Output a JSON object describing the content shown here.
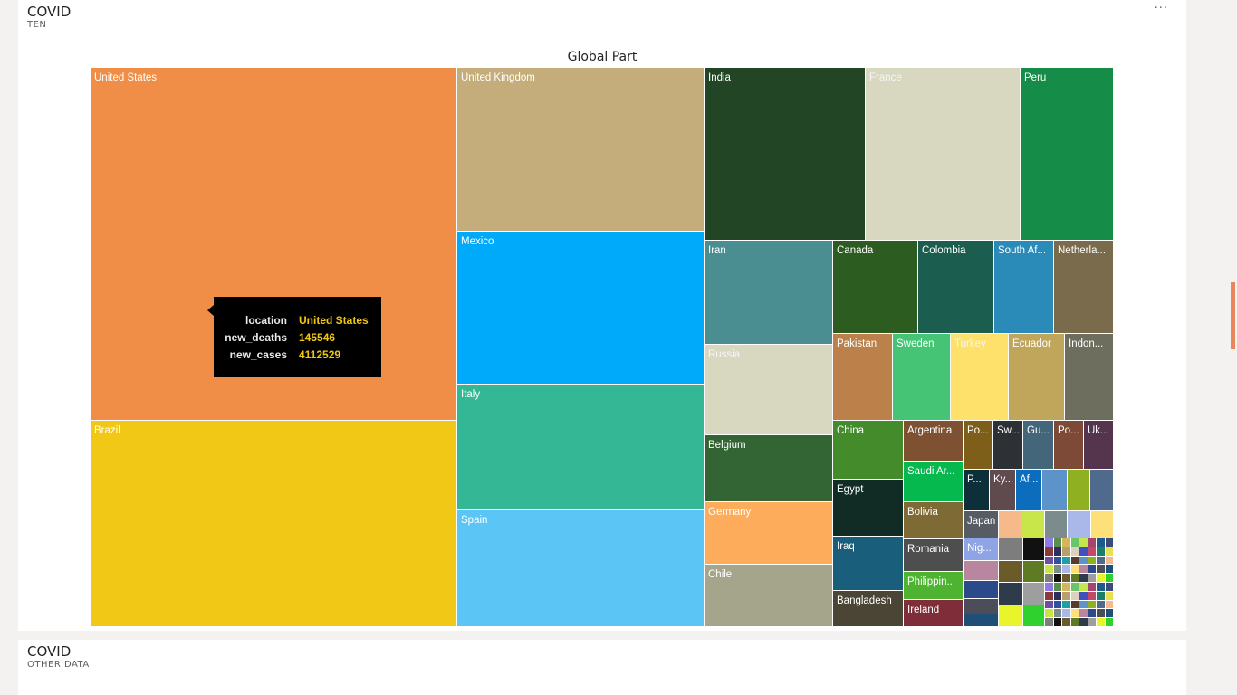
{
  "visual_top": {
    "title": "COVID",
    "subtitle": "TEN",
    "more_label": "···"
  },
  "visual_bottom": {
    "title": "COVID",
    "subtitle": "OTHER DATA"
  },
  "tooltip": {
    "rows": [
      {
        "key": "location",
        "value": "United States"
      },
      {
        "key": "new_deaths",
        "value": "145546"
      },
      {
        "key": "new_cases",
        "value": "4112529"
      }
    ]
  },
  "chart_data": {
    "type": "treemap",
    "title": "Global Part",
    "measure": "new_deaths",
    "group": "location",
    "items": [
      {
        "label": "United States",
        "value": 145546,
        "color": "#F08E48"
      },
      {
        "label": "Brazil",
        "color": "#F0C815"
      },
      {
        "label": "United Kingdom",
        "color": "#C4AD7A"
      },
      {
        "label": "Mexico",
        "color": "#00AAFB"
      },
      {
        "label": "Italy",
        "color": "#33B794"
      },
      {
        "label": "Spain",
        "color": "#5BC6F5"
      },
      {
        "label": "India",
        "color": "#224625"
      },
      {
        "label": "France",
        "color": "#D8D8C1"
      },
      {
        "label": "Peru",
        "color": "#158C47"
      },
      {
        "label": "Iran",
        "color": "#4A8E91"
      },
      {
        "label": "Russia",
        "color": "#D8D8C1"
      },
      {
        "label": "Belgium",
        "color": "#336433"
      },
      {
        "label": "Germany",
        "color": "#FCAC5A"
      },
      {
        "label": "Chile",
        "color": "#A5A58C"
      },
      {
        "label": "Canada",
        "color": "#2C5C1F"
      },
      {
        "label": "Colombia",
        "color": "#1B5E50"
      },
      {
        "label": "South Af...",
        "color": "#2A8BB8"
      },
      {
        "label": "Netherla...",
        "color": "#7A6B4C"
      },
      {
        "label": "Pakistan",
        "color": "#BC804A"
      },
      {
        "label": "Sweden",
        "color": "#46C476"
      },
      {
        "label": "Turkey",
        "color": "#FDE16A"
      },
      {
        "label": "Ecuador",
        "color": "#BFA65A"
      },
      {
        "label": "Indon...",
        "color": "#6E6E5E"
      },
      {
        "label": "China",
        "color": "#448B2B"
      },
      {
        "label": "Egypt",
        "color": "#112C25"
      },
      {
        "label": "Iraq",
        "color": "#195E7A"
      },
      {
        "label": "Bangladesh",
        "color": "#4B4535"
      },
      {
        "label": "Argentina",
        "color": "#7E5133"
      },
      {
        "label": "Saudi Ar...",
        "color": "#06B94F"
      },
      {
        "label": "Bolivia",
        "color": "#7D6A35"
      },
      {
        "label": "Romania",
        "color": "#4E4E4E"
      },
      {
        "label": "Philippin...",
        "color": "#4DB330"
      },
      {
        "label": "Ireland",
        "color": "#7E2D39"
      },
      {
        "label": "Po...",
        "color": "#7D5F1A"
      },
      {
        "label": "Sw...",
        "color": "#2D3135"
      },
      {
        "label": "Gu...",
        "color": "#44667A"
      },
      {
        "label": "Po...",
        "color": "#7E4A38"
      },
      {
        "label": "Uk...",
        "color": "#55344E"
      },
      {
        "label": "P...",
        "color": "#0D2F3A"
      },
      {
        "label": "Ky...",
        "color": "#5F4A4E"
      },
      {
        "label": "Af...",
        "color": "#0C6DBD"
      },
      {
        "label": "Japan",
        "color": "#575C64"
      },
      {
        "label": "Nig...",
        "color": "#8EA4E5"
      }
    ]
  }
}
